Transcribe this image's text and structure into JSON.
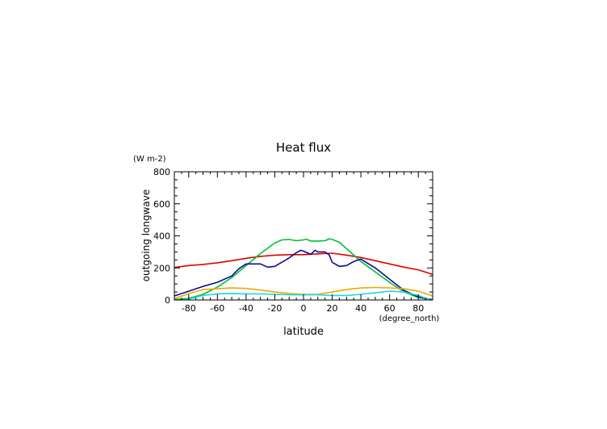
{
  "chart_data": {
    "type": "line",
    "title": "Heat flux",
    "xlabel": "latitude",
    "ylabel": "outgoing longwave",
    "x_unit": "(degree_north)",
    "y_unit": "(W m-2)",
    "xlim": [
      -90,
      90
    ],
    "ylim": [
      0,
      800
    ],
    "x_ticks": [
      "-80",
      "-60",
      "-40",
      "-20",
      "0",
      "20",
      "40",
      "60",
      "80"
    ],
    "y_ticks": [
      "0",
      "200",
      "400",
      "600",
      "800"
    ],
    "grid": false,
    "series": [
      {
        "color": "#e00000",
        "x": [
          -90,
          -80,
          -70,
          -60,
          -50,
          -40,
          -30,
          -20,
          -10,
          0,
          10,
          20,
          30,
          40,
          50,
          60,
          70,
          80,
          90
        ],
        "y": [
          203,
          215,
          222,
          232,
          245,
          260,
          272,
          280,
          283,
          283,
          288,
          292,
          280,
          265,
          245,
          225,
          205,
          188,
          160
        ]
      },
      {
        "color": "#00c030",
        "x": [
          -90,
          -80,
          -70,
          -60,
          -50,
          -40,
          -30,
          -20,
          -15,
          -10,
          -5,
          0,
          2,
          5,
          10,
          15,
          18,
          20,
          25,
          30,
          40,
          50,
          60,
          70,
          80,
          90
        ],
        "y": [
          2,
          10,
          35,
          80,
          140,
          215,
          290,
          355,
          375,
          378,
          370,
          375,
          380,
          368,
          368,
          370,
          382,
          378,
          360,
          320,
          240,
          175,
          110,
          50,
          15,
          2
        ]
      },
      {
        "color": "#0a0a96",
        "x": [
          -90,
          -80,
          -70,
          -60,
          -50,
          -45,
          -40,
          -30,
          -25,
          -20,
          -10,
          -5,
          -2,
          0,
          5,
          8,
          10,
          15,
          18,
          20,
          25,
          30,
          35,
          40,
          50,
          60,
          70,
          80,
          90
        ],
        "y": [
          25,
          55,
          85,
          110,
          150,
          195,
          225,
          225,
          205,
          210,
          262,
          295,
          310,
          305,
          285,
          310,
          300,
          300,
          280,
          235,
          210,
          215,
          240,
          255,
          200,
          130,
          60,
          20,
          0
        ]
      },
      {
        "color": "#f0a800",
        "x": [
          -90,
          -80,
          -70,
          -60,
          -50,
          -40,
          -30,
          -20,
          -10,
          0,
          10,
          20,
          30,
          40,
          50,
          60,
          70,
          80,
          90
        ],
        "y": [
          8,
          40,
          65,
          70,
          75,
          72,
          62,
          50,
          40,
          35,
          35,
          50,
          65,
          75,
          78,
          75,
          70,
          55,
          25
        ]
      },
      {
        "color": "#18d8e8",
        "x": [
          -90,
          -80,
          -70,
          -60,
          -50,
          -40,
          -30,
          -20,
          -10,
          0,
          10,
          20,
          30,
          40,
          50,
          60,
          70,
          80,
          90
        ],
        "y": [
          -12,
          5,
          28,
          38,
          40,
          38,
          38,
          35,
          32,
          32,
          32,
          28,
          28,
          35,
          45,
          55,
          50,
          28,
          -5
        ]
      }
    ]
  }
}
